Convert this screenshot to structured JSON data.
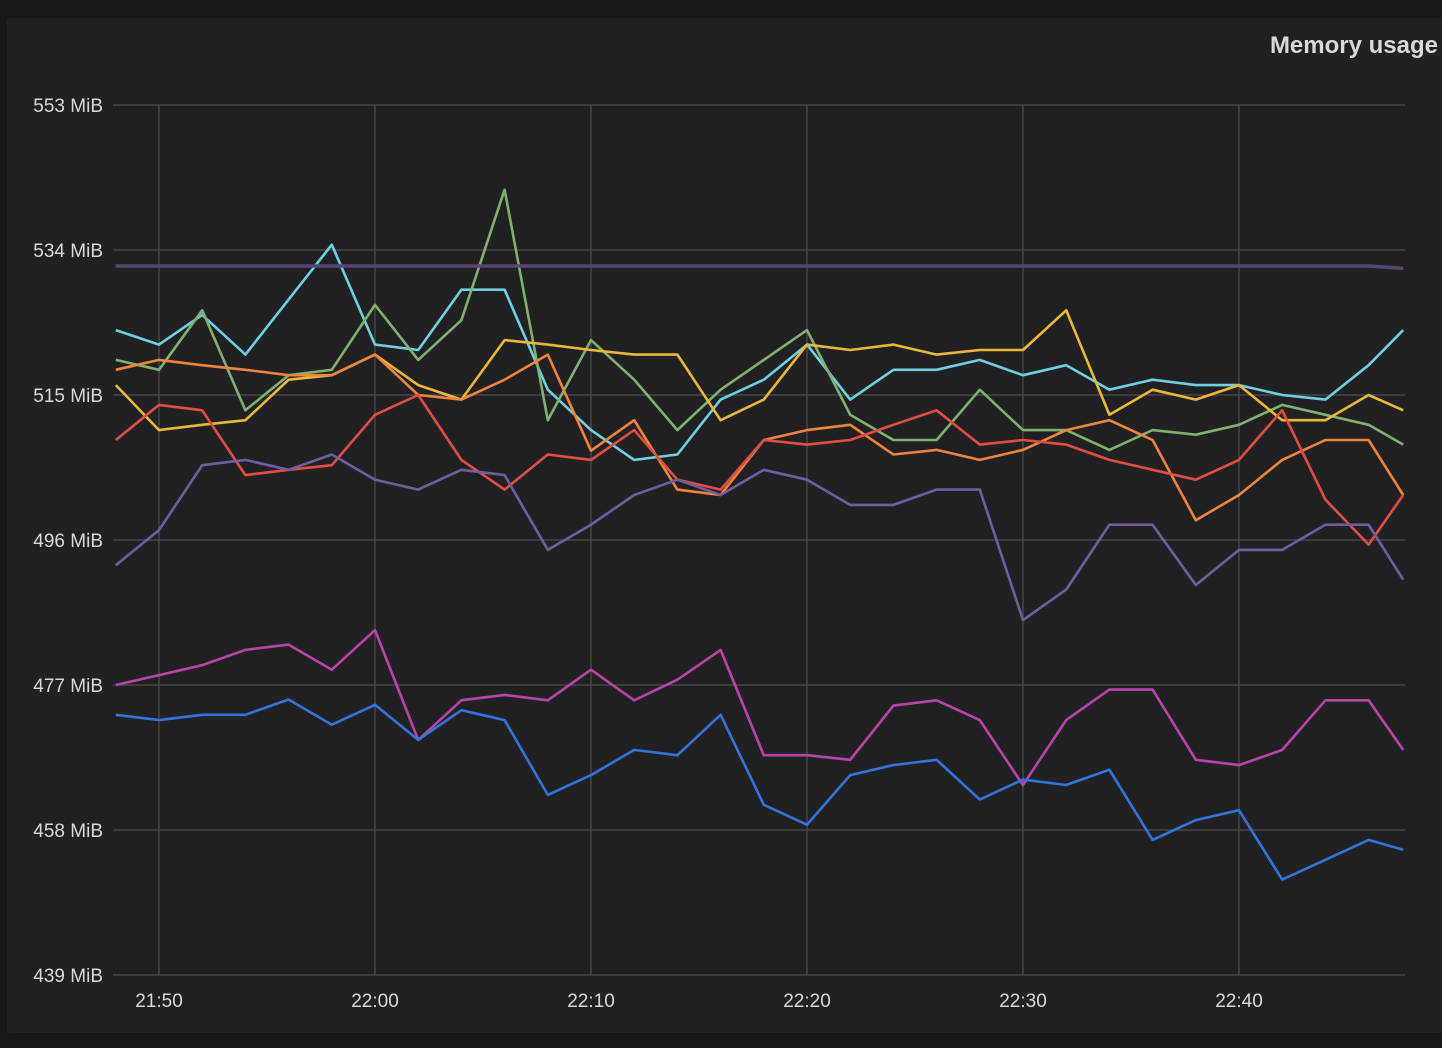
{
  "chart_data": {
    "type": "line",
    "title": "Memory usage",
    "xlabel": "",
    "ylabel": "",
    "unit": "MiB",
    "x_unit": "minutes after 21:50",
    "xlim": [
      -2.1,
      57.7
    ],
    "ylim": [
      439,
      553
    ],
    "y_ticks": [
      553,
      534,
      515,
      496,
      477,
      458,
      439
    ],
    "y_tick_labels": [
      "553 MiB",
      "534 MiB",
      "515 MiB",
      "496 MiB",
      "477 MiB",
      "458 MiB",
      "439 MiB"
    ],
    "x_ticks": [
      0,
      10,
      20,
      30,
      40,
      50
    ],
    "x_tick_labels": [
      "21:50",
      "22:00",
      "22:10",
      "22:20",
      "22:30",
      "22:40"
    ],
    "grid": true,
    "legend": "none",
    "x": [
      -2,
      0,
      2,
      4,
      6,
      8,
      10,
      12,
      14,
      16,
      18,
      20,
      22,
      24,
      26,
      28,
      30,
      32,
      34,
      36,
      38,
      40,
      42,
      44,
      46,
      48,
      50,
      52,
      54,
      56,
      57.6
    ],
    "series": [
      {
        "color": "#6ed0e0",
        "values": [
          523.5,
          521.6,
          525.5,
          520.3,
          527.5,
          534.7,
          521.6,
          520.9,
          528.8,
          528.8,
          515.7,
          510.4,
          506.5,
          507.2,
          514.4,
          517.0,
          521.6,
          514.4,
          518.3,
          518.3,
          519.6,
          517.6,
          518.9,
          515.7,
          517.0,
          516.3,
          516.3,
          515.0,
          514.4,
          518.9,
          523.5
        ]
      },
      {
        "color": "#7eb26d",
        "values": [
          519.6,
          518.3,
          526.1,
          513.0,
          517.6,
          518.3,
          526.8,
          519.6,
          524.8,
          541.9,
          511.7,
          522.2,
          517.0,
          510.4,
          515.7,
          519.6,
          523.5,
          512.4,
          509.1,
          509.1,
          515.7,
          510.4,
          510.4,
          507.8,
          510.4,
          509.8,
          511.1,
          513.7,
          512.4,
          511.1,
          508.5
        ]
      },
      {
        "color": "#eab839",
        "values": [
          516.3,
          510.4,
          511.1,
          511.7,
          517.0,
          517.6,
          520.3,
          516.3,
          514.4,
          522.2,
          521.6,
          520.9,
          520.3,
          520.3,
          511.7,
          514.4,
          521.6,
          520.9,
          521.6,
          520.3,
          520.9,
          520.9,
          526.1,
          512.4,
          515.7,
          514.4,
          516.3,
          511.7,
          511.7,
          515.0,
          513.0
        ]
      },
      {
        "color": "#ef843c",
        "values": [
          518.3,
          519.6,
          518.9,
          518.3,
          517.6,
          517.6,
          520.3,
          515.0,
          514.4,
          517.0,
          520.3,
          507.7,
          511.7,
          502.6,
          501.9,
          509.1,
          510.4,
          511.1,
          507.2,
          507.8,
          506.5,
          507.8,
          510.4,
          511.7,
          509.1,
          498.6,
          501.9,
          506.5,
          509.1,
          509.1,
          501.9
        ]
      },
      {
        "color": "#e24d42",
        "values": [
          509.1,
          513.7,
          513.0,
          504.5,
          505.2,
          505.8,
          512.4,
          515.0,
          506.5,
          502.6,
          507.2,
          506.5,
          510.4,
          503.9,
          502.6,
          509.1,
          508.5,
          509.1,
          511.1,
          513.0,
          508.5,
          509.1,
          508.5,
          506.5,
          505.2,
          503.9,
          506.5,
          513.0,
          501.3,
          495.4,
          501.9
        ]
      },
      {
        "color": "#705da0",
        "values": [
          492.7,
          497.3,
          505.8,
          506.5,
          505.2,
          507.2,
          503.9,
          502.6,
          505.2,
          504.5,
          494.7,
          498.0,
          501.9,
          503.9,
          501.9,
          505.2,
          503.9,
          500.6,
          500.6,
          502.6,
          502.6,
          485.5,
          489.5,
          498.0,
          498.0,
          490.1,
          494.7,
          494.7,
          498.0,
          498.0,
          490.8
        ]
      },
      {
        "color": "#ba43a9",
        "values": [
          477.0,
          478.3,
          479.6,
          481.6,
          482.3,
          479.0,
          484.2,
          469.8,
          475.0,
          475.7,
          475.0,
          479.0,
          475.0,
          477.7,
          481.6,
          467.8,
          467.8,
          467.2,
          474.3,
          475.0,
          472.4,
          463.9,
          472.4,
          476.4,
          476.4,
          467.2,
          466.5,
          468.5,
          475.0,
          475.0,
          468.5
        ]
      },
      {
        "color": "#3274d9",
        "values": [
          473.1,
          472.4,
          473.1,
          473.1,
          475.1,
          471.8,
          474.4,
          469.8,
          473.7,
          472.4,
          462.6,
          465.2,
          468.5,
          467.8,
          473.1,
          461.3,
          458.7,
          465.2,
          466.5,
          467.2,
          462.0,
          464.6,
          463.9,
          465.9,
          456.7,
          459.3,
          460.6,
          451.5,
          454.1,
          456.7,
          455.4
        ]
      },
      {
        "color": "#584477",
        "values": [
          531.9,
          531.9,
          531.9,
          531.9,
          531.9,
          531.9,
          531.9,
          531.9,
          531.9,
          531.9,
          531.9,
          531.9,
          531.9,
          531.9,
          531.9,
          531.9,
          531.9,
          531.9,
          531.9,
          531.9,
          531.9,
          531.9,
          531.9,
          531.9,
          531.9,
          531.9,
          531.9,
          531.9,
          531.9,
          531.9,
          531.6
        ]
      }
    ]
  }
}
